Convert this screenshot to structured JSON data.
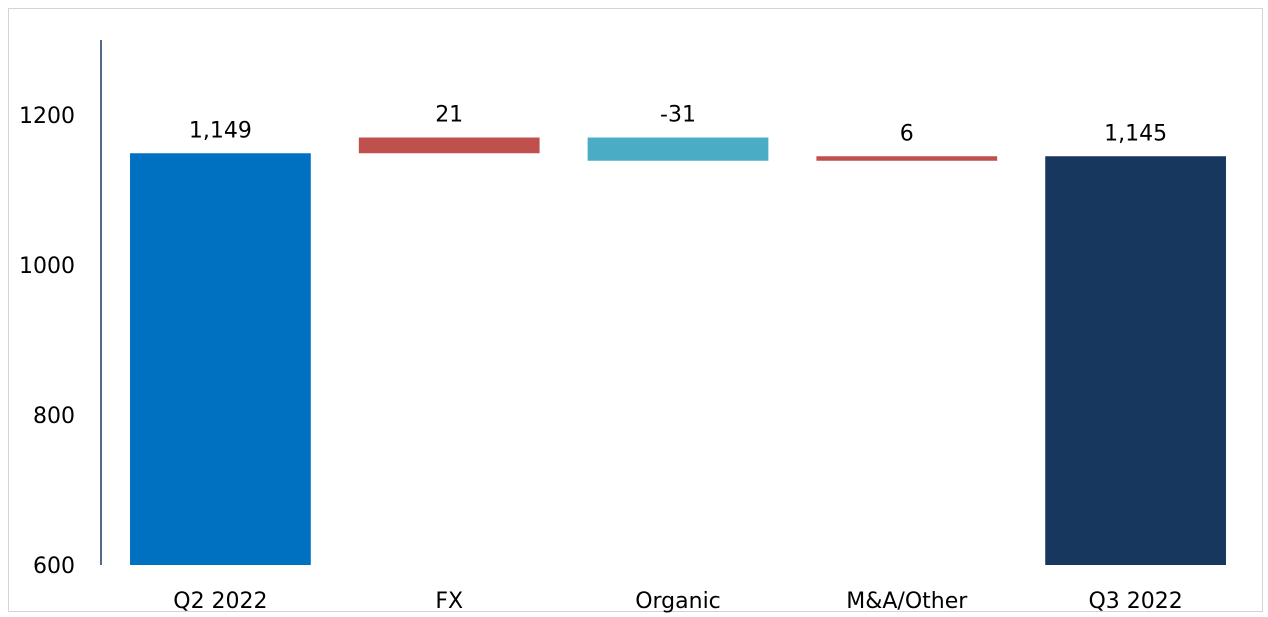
{
  "chart_data": {
    "type": "bar",
    "subtype": "waterfall",
    "title": "",
    "xlabel": "",
    "ylabel": "",
    "ylim": [
      600,
      1300
    ],
    "yticks": [
      600,
      800,
      1000,
      1200
    ],
    "ytick_labels": [
      "600",
      "800",
      "1000",
      "1200"
    ],
    "grid": false,
    "legend": "none",
    "categories": [
      "Q2 2022",
      "FX",
      "Organic",
      "M&A/Other",
      "Q3 2022"
    ],
    "values": [
      1149,
      21,
      -31,
      6,
      1145
    ],
    "data_labels": [
      "1,149",
      "21",
      "-31",
      "6",
      "1,145"
    ],
    "kinds": [
      "total",
      "delta",
      "delta",
      "delta",
      "total"
    ],
    "colors": [
      "#0070c0",
      "#c0504d",
      "#4bacc6",
      "#c0504d",
      "#17375e"
    ]
  }
}
